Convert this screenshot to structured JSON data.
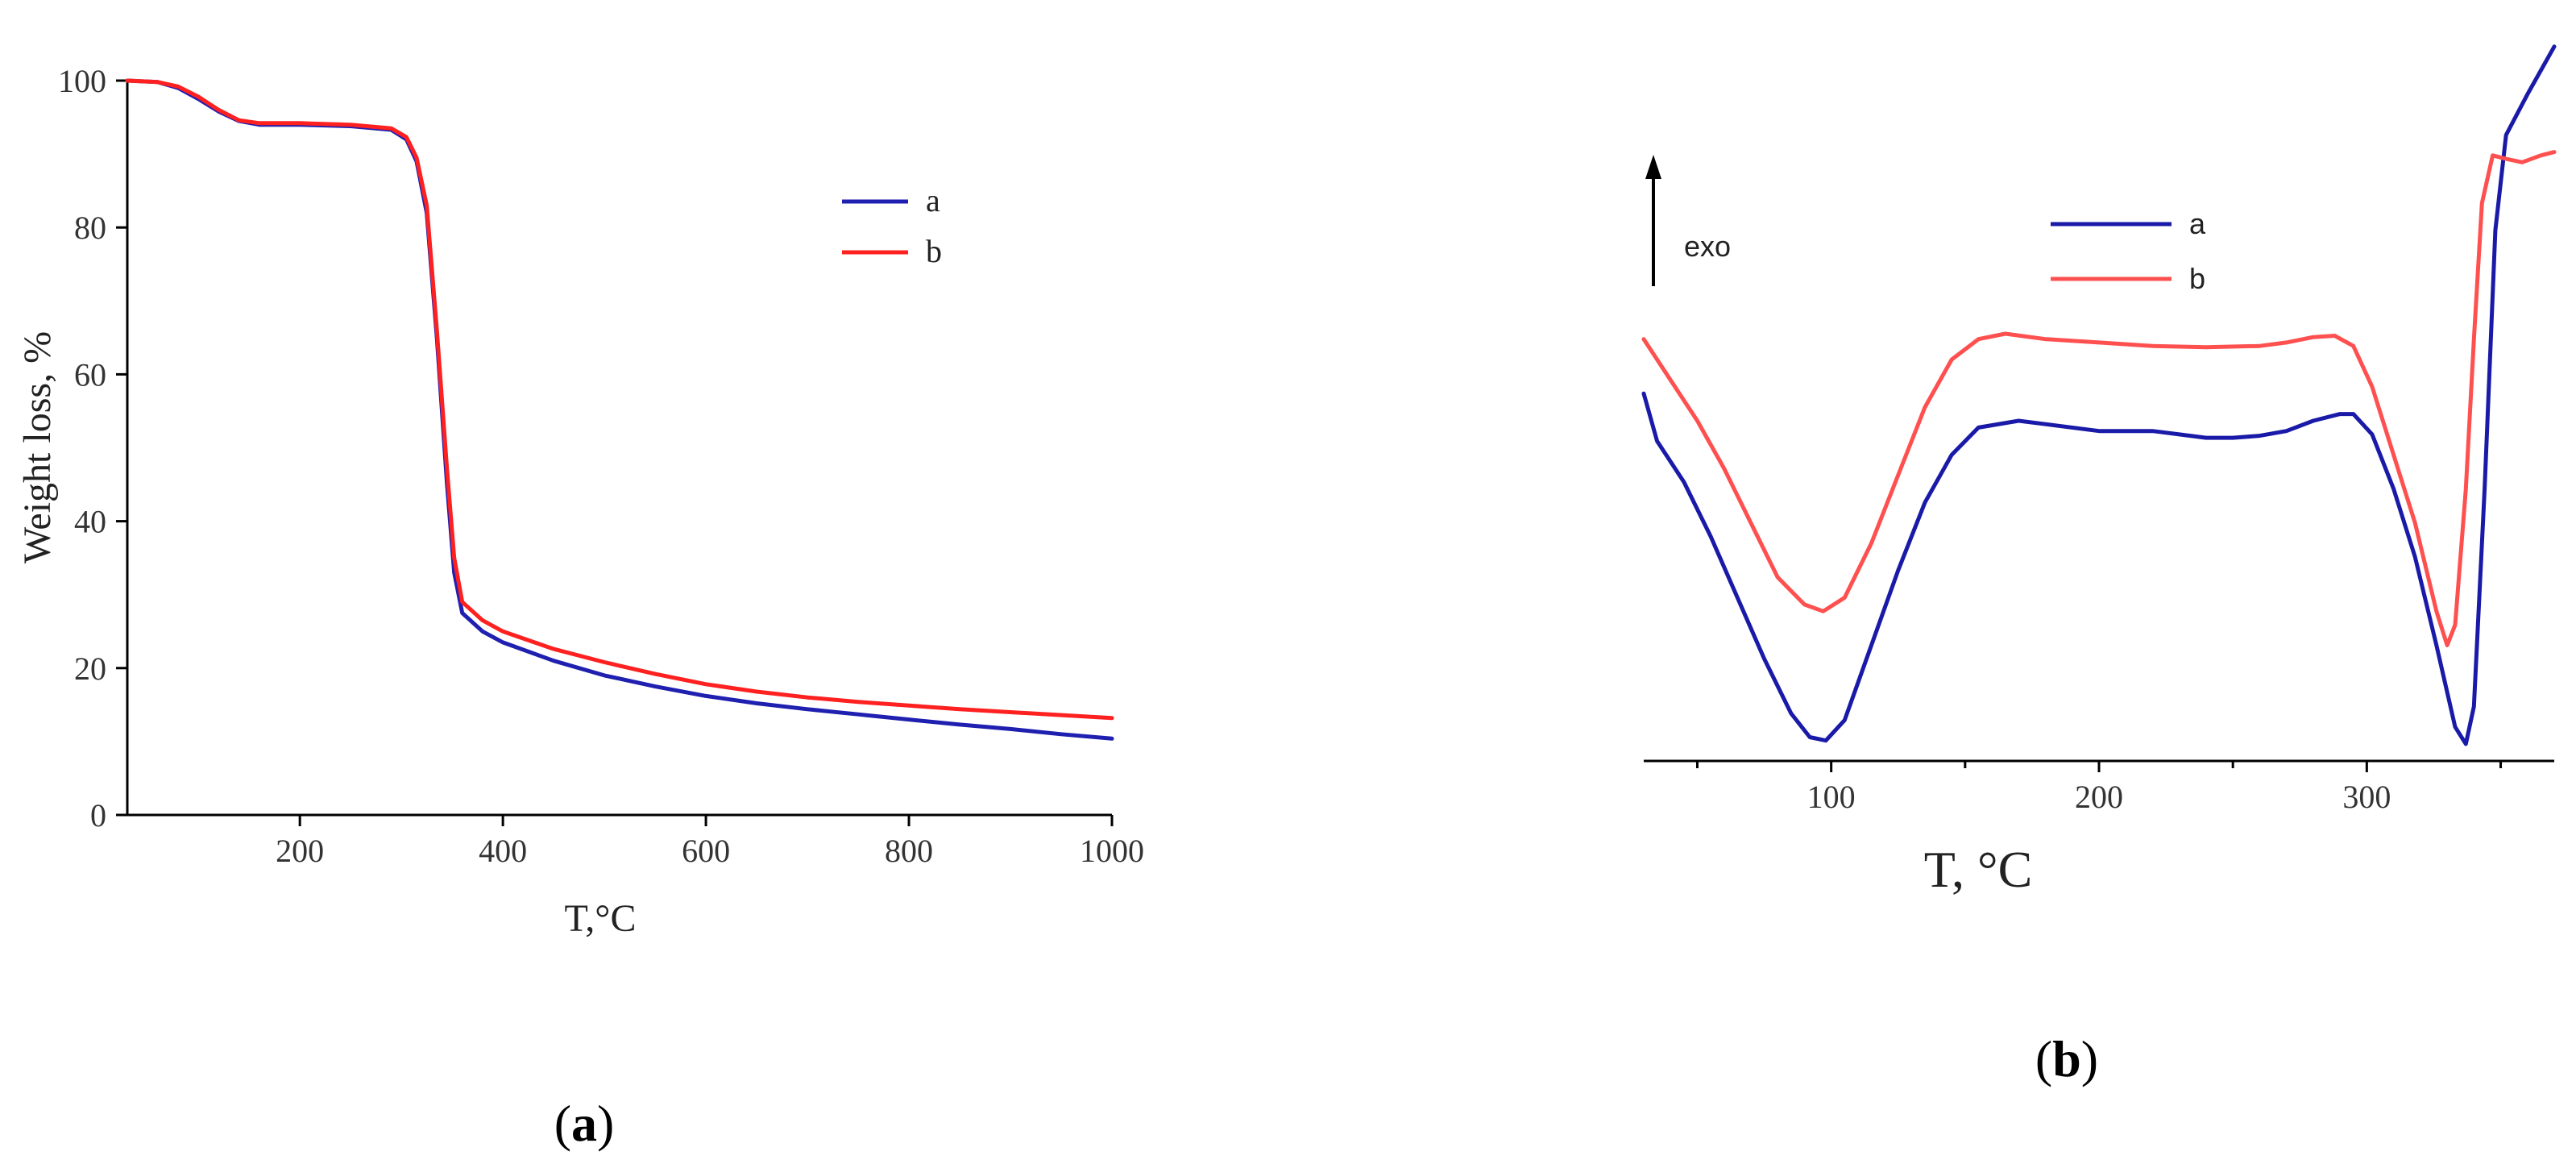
{
  "chart_data": [
    {
      "type": "line",
      "panel_label": "a",
      "xlabel": "T,°C",
      "ylabel": "Weight loss, %",
      "xlim": [
        30,
        1000
      ],
      "ylim": [
        0,
        100
      ],
      "xticks": [
        200,
        400,
        600,
        800,
        1000
      ],
      "yticks": [
        0,
        20,
        40,
        60,
        80,
        100
      ],
      "grid": false,
      "legend_position": "top-right",
      "series": [
        {
          "name": "a",
          "color": "#1f1fb0",
          "points": [
            [
              30,
              100
            ],
            [
              60,
              99.8
            ],
            [
              80,
              99
            ],
            [
              100,
              97.5
            ],
            [
              120,
              95.8
            ],
            [
              140,
              94.5
            ],
            [
              160,
              94
            ],
            [
              200,
              94
            ],
            [
              250,
              93.8
            ],
            [
              290,
              93.3
            ],
            [
              305,
              92
            ],
            [
              315,
              89
            ],
            [
              325,
              82
            ],
            [
              335,
              65
            ],
            [
              345,
              45
            ],
            [
              352,
              33
            ],
            [
              360,
              27.5
            ],
            [
              380,
              25
            ],
            [
              400,
              23.5
            ],
            [
              450,
              21
            ],
            [
              500,
              19
            ],
            [
              550,
              17.5
            ],
            [
              600,
              16.2
            ],
            [
              650,
              15.2
            ],
            [
              700,
              14.4
            ],
            [
              750,
              13.7
            ],
            [
              800,
              13
            ],
            [
              850,
              12.3
            ],
            [
              900,
              11.7
            ],
            [
              950,
              11
            ],
            [
              1000,
              10.4
            ]
          ]
        },
        {
          "name": "b",
          "color": "#ff2020",
          "points": [
            [
              30,
              100
            ],
            [
              60,
              99.8
            ],
            [
              80,
              99.2
            ],
            [
              100,
              97.8
            ],
            [
              120,
              96
            ],
            [
              140,
              94.6
            ],
            [
              160,
              94.2
            ],
            [
              200,
              94.2
            ],
            [
              250,
              94
            ],
            [
              290,
              93.5
            ],
            [
              305,
              92.3
            ],
            [
              315,
              89.5
            ],
            [
              325,
              83
            ],
            [
              335,
              66
            ],
            [
              345,
              47
            ],
            [
              352,
              35
            ],
            [
              360,
              29
            ],
            [
              380,
              26.5
            ],
            [
              400,
              25
            ],
            [
              450,
              22.6
            ],
            [
              500,
              20.8
            ],
            [
              550,
              19.2
            ],
            [
              600,
              17.8
            ],
            [
              650,
              16.8
            ],
            [
              700,
              16
            ],
            [
              750,
              15.4
            ],
            [
              800,
              14.9
            ],
            [
              850,
              14.4
            ],
            [
              900,
              14
            ],
            [
              950,
              13.6
            ],
            [
              1000,
              13.2
            ]
          ]
        }
      ]
    },
    {
      "type": "line",
      "panel_label": "b",
      "xlabel": "T, °C",
      "ylabel": "",
      "annotation": "exo",
      "xlim": [
        30,
        370
      ],
      "ylim": [
        0,
        100
      ],
      "xticks": [
        100,
        200,
        300
      ],
      "minor_xticks": [
        50,
        150,
        250,
        350
      ],
      "yticks": [],
      "grid": false,
      "legend_position": "top-center",
      "series": [
        {
          "name": "a",
          "color": "#1a1aa8",
          "points": [
            [
              30,
              54
            ],
            [
              35,
              47
            ],
            [
              45,
              41
            ],
            [
              55,
              33
            ],
            [
              65,
              24
            ],
            [
              75,
              15
            ],
            [
              85,
              7
            ],
            [
              92,
              3.5
            ],
            [
              98,
              3
            ],
            [
              105,
              6
            ],
            [
              115,
              17
            ],
            [
              125,
              28
            ],
            [
              135,
              38
            ],
            [
              145,
              45
            ],
            [
              155,
              49
            ],
            [
              170,
              50
            ],
            [
              180,
              49.5
            ],
            [
              200,
              48.5
            ],
            [
              220,
              48.5
            ],
            [
              230,
              48
            ],
            [
              240,
              47.5
            ],
            [
              250,
              47.5
            ],
            [
              260,
              47.8
            ],
            [
              270,
              48.5
            ],
            [
              280,
              50
            ],
            [
              290,
              51
            ],
            [
              295,
              51
            ],
            [
              302,
              48
            ],
            [
              310,
              40
            ],
            [
              318,
              30
            ],
            [
              326,
              17
            ],
            [
              333,
              5
            ],
            [
              337,
              2.5
            ],
            [
              340,
              8
            ],
            [
              344,
              40
            ],
            [
              348,
              78
            ],
            [
              352,
              92
            ],
            [
              360,
              98
            ],
            [
              370,
              105
            ]
          ]
        },
        {
          "name": "b",
          "color": "#ff5050",
          "points": [
            [
              30,
              62
            ],
            [
              40,
              56
            ],
            [
              50,
              50
            ],
            [
              60,
              43
            ],
            [
              70,
              35
            ],
            [
              80,
              27
            ],
            [
              90,
              23
            ],
            [
              97,
              22
            ],
            [
              105,
              24
            ],
            [
              115,
              32
            ],
            [
              125,
              42
            ],
            [
              135,
              52
            ],
            [
              145,
              59
            ],
            [
              155,
              62
            ],
            [
              165,
              62.8
            ],
            [
              180,
              62
            ],
            [
              200,
              61.5
            ],
            [
              220,
              61
            ],
            [
              240,
              60.8
            ],
            [
              260,
              61
            ],
            [
              270,
              61.5
            ],
            [
              280,
              62.3
            ],
            [
              288,
              62.5
            ],
            [
              295,
              61
            ],
            [
              302,
              55
            ],
            [
              310,
              45
            ],
            [
              318,
              35
            ],
            [
              326,
              22
            ],
            [
              330,
              17
            ],
            [
              333,
              20
            ],
            [
              337,
              40
            ],
            [
              340,
              62
            ],
            [
              343,
              82
            ],
            [
              347,
              89
            ],
            [
              352,
              88.5
            ],
            [
              358,
              88
            ],
            [
              365,
              89
            ],
            [
              370,
              89.5
            ]
          ]
        }
      ]
    }
  ]
}
